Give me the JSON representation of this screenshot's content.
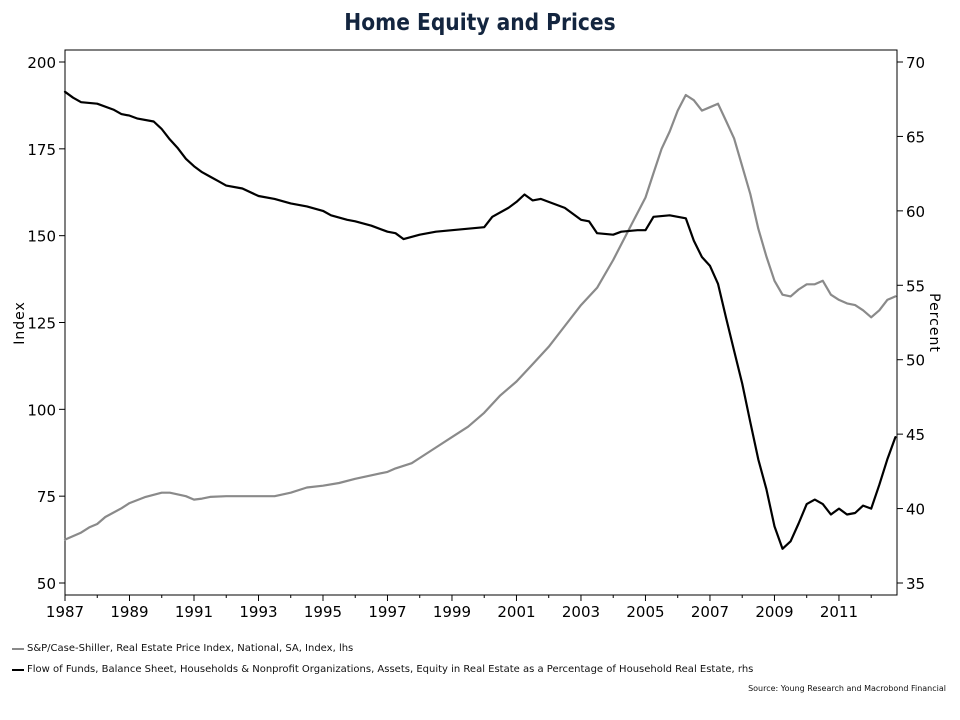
{
  "chart_data": {
    "type": "line",
    "title": "Home Equity and Prices",
    "ylabel_left": "Index",
    "ylabel_right": "Percent",
    "ylim_left": [
      50,
      200
    ],
    "ylim_right": [
      35,
      70
    ],
    "xlim": [
      1987,
      2012.8
    ],
    "x_ticks": [
      "1987",
      "1989",
      "1991",
      "1993",
      "1995",
      "1997",
      "1999",
      "2001",
      "2003",
      "2005",
      "2007",
      "2009",
      "2011"
    ],
    "y_ticks_left": [
      "200",
      "175",
      "150",
      "125",
      "100",
      "75",
      "50"
    ],
    "y_ticks_right": [
      "70",
      "65",
      "60",
      "55",
      "50",
      "45",
      "40",
      "35"
    ],
    "grid": false,
    "legend_position": "bottom-left",
    "series": [
      {
        "name": "S&P/Case-Shiller, Real Estate Price Index, National, SA, Index, lhs",
        "axis": "left",
        "color": "#8a8a8a",
        "points": [
          [
            1987.0,
            62.5
          ],
          [
            1987.5,
            64.5
          ],
          [
            1987.75,
            66.0
          ],
          [
            1988.0,
            67.0
          ],
          [
            1988.25,
            69.0
          ],
          [
            1988.75,
            71.5
          ],
          [
            1989.0,
            73.0
          ],
          [
            1989.5,
            74.8
          ],
          [
            1990.0,
            76.0
          ],
          [
            1990.25,
            76.0
          ],
          [
            1990.5,
            75.5
          ],
          [
            1990.75,
            75.0
          ],
          [
            1991.0,
            74.0
          ],
          [
            1991.25,
            74.3
          ],
          [
            1991.5,
            74.8
          ],
          [
            1992.0,
            75.0
          ],
          [
            1992.5,
            75.0
          ],
          [
            1993.0,
            75.0
          ],
          [
            1993.5,
            75.0
          ],
          [
            1994.0,
            76.0
          ],
          [
            1994.5,
            77.5
          ],
          [
            1995.0,
            78.0
          ],
          [
            1995.5,
            78.8
          ],
          [
            1996.0,
            80.0
          ],
          [
            1996.5,
            81.0
          ],
          [
            1997.0,
            82.0
          ],
          [
            1997.25,
            83.0
          ],
          [
            1997.75,
            84.5
          ],
          [
            1998.0,
            86.0
          ],
          [
            1998.5,
            89.0
          ],
          [
            1999.0,
            92.0
          ],
          [
            1999.5,
            95.0
          ],
          [
            2000.0,
            99.0
          ],
          [
            2000.5,
            104.0
          ],
          [
            2001.0,
            108.0
          ],
          [
            2001.5,
            113.0
          ],
          [
            2002.0,
            118.0
          ],
          [
            2002.5,
            124.0
          ],
          [
            2003.0,
            130.0
          ],
          [
            2003.5,
            135.0
          ],
          [
            2004.0,
            143.0
          ],
          [
            2004.5,
            152.0
          ],
          [
            2005.0,
            161.0
          ],
          [
            2005.25,
            168.0
          ],
          [
            2005.5,
            175.0
          ],
          [
            2005.75,
            180.0
          ],
          [
            2006.0,
            186.0
          ],
          [
            2006.25,
            190.5
          ],
          [
            2006.5,
            189.0
          ],
          [
            2006.75,
            186.0
          ],
          [
            2007.0,
            187.0
          ],
          [
            2007.25,
            188.0
          ],
          [
            2007.5,
            183.0
          ],
          [
            2007.75,
            178.0
          ],
          [
            2008.0,
            170.0
          ],
          [
            2008.25,
            162.0
          ],
          [
            2008.5,
            152.0
          ],
          [
            2008.75,
            144.0
          ],
          [
            2009.0,
            137.0
          ],
          [
            2009.25,
            133.0
          ],
          [
            2009.5,
            132.5
          ],
          [
            2009.75,
            134.5
          ],
          [
            2010.0,
            136.0
          ],
          [
            2010.25,
            136.0
          ],
          [
            2010.5,
            137.0
          ],
          [
            2010.75,
            133.0
          ],
          [
            2011.0,
            131.5
          ],
          [
            2011.25,
            130.5
          ],
          [
            2011.5,
            130.0
          ],
          [
            2011.75,
            128.5
          ],
          [
            2012.0,
            126.5
          ],
          [
            2012.25,
            128.5
          ],
          [
            2012.5,
            131.5
          ],
          [
            2012.75,
            132.5
          ]
        ]
      },
      {
        "name": "Flow of Funds, Balance Sheet, Households & Nonprofit Organizations, Assets, Equity in Real Estate as a Percentage of Household Real Estate, rhs",
        "axis": "right",
        "color": "#000000",
        "points": [
          [
            1987.0,
            68.0
          ],
          [
            1987.25,
            67.6
          ],
          [
            1987.5,
            67.3
          ],
          [
            1988.0,
            67.2
          ],
          [
            1988.5,
            66.8
          ],
          [
            1988.75,
            66.5
          ],
          [
            1989.0,
            66.4
          ],
          [
            1989.25,
            66.2
          ],
          [
            1989.75,
            66.0
          ],
          [
            1990.0,
            65.5
          ],
          [
            1990.25,
            64.8
          ],
          [
            1990.5,
            64.2
          ],
          [
            1990.75,
            63.5
          ],
          [
            1991.0,
            63.0
          ],
          [
            1991.25,
            62.6
          ],
          [
            1991.5,
            62.3
          ],
          [
            1991.75,
            62.0
          ],
          [
            1992.0,
            61.7
          ],
          [
            1992.5,
            61.5
          ],
          [
            1993.0,
            61.0
          ],
          [
            1993.5,
            60.8
          ],
          [
            1994.0,
            60.5
          ],
          [
            1994.5,
            60.3
          ],
          [
            1995.0,
            60.0
          ],
          [
            1995.25,
            59.7
          ],
          [
            1995.75,
            59.4
          ],
          [
            1996.0,
            59.3
          ],
          [
            1996.5,
            59.0
          ],
          [
            1997.0,
            58.6
          ],
          [
            1997.25,
            58.5
          ],
          [
            1997.5,
            58.1
          ],
          [
            1998.0,
            58.4
          ],
          [
            1998.5,
            58.6
          ],
          [
            1999.0,
            58.7
          ],
          [
            1999.5,
            58.8
          ],
          [
            2000.0,
            58.9
          ],
          [
            2000.25,
            59.6
          ],
          [
            2000.75,
            60.2
          ],
          [
            2001.0,
            60.6
          ],
          [
            2001.25,
            61.1
          ],
          [
            2001.5,
            60.7
          ],
          [
            2001.75,
            60.8
          ],
          [
            2002.0,
            60.6
          ],
          [
            2002.5,
            60.2
          ],
          [
            2003.0,
            59.4
          ],
          [
            2003.25,
            59.3
          ],
          [
            2003.5,
            58.5
          ],
          [
            2004.0,
            58.4
          ],
          [
            2004.25,
            58.6
          ],
          [
            2004.75,
            58.7
          ],
          [
            2005.0,
            58.7
          ],
          [
            2005.25,
            59.6
          ],
          [
            2005.75,
            59.7
          ],
          [
            2006.0,
            59.6
          ],
          [
            2006.25,
            59.5
          ],
          [
            2006.5,
            58.0
          ],
          [
            2006.75,
            56.9
          ],
          [
            2007.0,
            56.3
          ],
          [
            2007.25,
            55.1
          ],
          [
            2007.5,
            52.8
          ],
          [
            2007.75,
            50.6
          ],
          [
            2008.0,
            48.4
          ],
          [
            2008.25,
            45.8
          ],
          [
            2008.5,
            43.3
          ],
          [
            2008.75,
            41.3
          ],
          [
            2009.0,
            38.8
          ],
          [
            2009.25,
            37.3
          ],
          [
            2009.5,
            37.8
          ],
          [
            2009.75,
            39.0
          ],
          [
            2010.0,
            40.3
          ],
          [
            2010.25,
            40.6
          ],
          [
            2010.5,
            40.3
          ],
          [
            2010.75,
            39.6
          ],
          [
            2011.0,
            40.0
          ],
          [
            2011.25,
            39.6
          ],
          [
            2011.5,
            39.7
          ],
          [
            2011.75,
            40.2
          ],
          [
            2012.0,
            40.0
          ],
          [
            2012.25,
            41.6
          ],
          [
            2012.5,
            43.3
          ],
          [
            2012.75,
            44.8
          ]
        ]
      }
    ],
    "source": "Source: Young Research and Macrobond Financial"
  }
}
